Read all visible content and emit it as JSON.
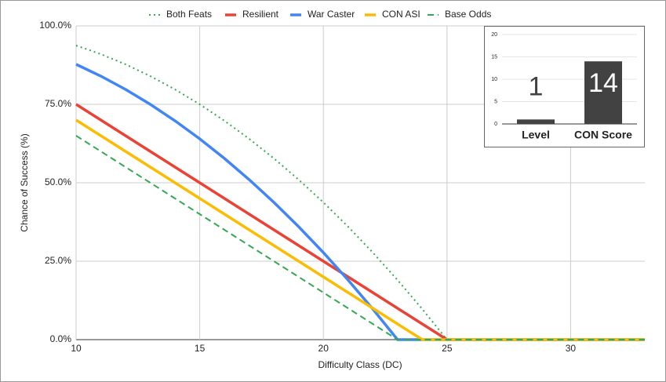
{
  "chart_data": [
    {
      "type": "line",
      "xlabel": "Difficulty Class (DC)",
      "ylabel": "Chance of Success (%)",
      "x": [
        10,
        11,
        12,
        13,
        14,
        15,
        16,
        17,
        18,
        19,
        20,
        21,
        22,
        23,
        24,
        25,
        26,
        27,
        28,
        29,
        30,
        31,
        32,
        33
      ],
      "xlim": [
        10,
        33
      ],
      "xticks": [
        10,
        15,
        20,
        25,
        30
      ],
      "ylim": [
        0,
        100
      ],
      "yticks": [
        {
          "value": 0,
          "label": "0.0%"
        },
        {
          "value": 25,
          "label": "25.0%"
        },
        {
          "value": 50,
          "label": "50.0%"
        },
        {
          "value": 75,
          "label": "75.0%"
        },
        {
          "value": 100,
          "label": "100.0%"
        }
      ],
      "grid": true,
      "legend": "top",
      "series": [
        {
          "name": "Both Feats",
          "color": "#34a853",
          "style": "dotted",
          "values": [
            93.75,
            91,
            87.75,
            84,
            79.75,
            75,
            69.75,
            64,
            57.75,
            51,
            43.75,
            36,
            27.75,
            19,
            9.75,
            0,
            0,
            0,
            0,
            0,
            0,
            0,
            0,
            0
          ]
        },
        {
          "name": "Resilient",
          "color": "#ea4335",
          "style": "solid",
          "values": [
            75,
            70,
            65,
            60,
            55,
            50,
            45,
            40,
            35,
            30,
            25,
            20,
            15,
            10,
            5,
            0,
            0,
            0,
            0,
            0,
            0,
            0,
            0,
            0
          ]
        },
        {
          "name": "War Caster",
          "color": "#4285f4",
          "style": "solid",
          "values": [
            87.75,
            84,
            79.75,
            75,
            69.75,
            64,
            57.75,
            51,
            43.75,
            36,
            27.75,
            19,
            9.75,
            0,
            0,
            0,
            0,
            0,
            0,
            0,
            0,
            0,
            0,
            0
          ]
        },
        {
          "name": "CON ASI",
          "color": "#fbbc04",
          "style": "solid",
          "values": [
            70,
            65,
            60,
            55,
            50,
            45,
            40,
            35,
            30,
            25,
            20,
            15,
            10,
            5,
            0,
            0,
            0,
            0,
            0,
            0,
            0,
            0,
            0,
            0
          ]
        },
        {
          "name": "Base Odds",
          "color": "#34a853",
          "style": "dashed",
          "values": [
            65,
            60,
            55,
            50,
            45,
            40,
            35,
            30,
            25,
            20,
            15,
            10,
            5,
            0,
            0,
            0,
            0,
            0,
            0,
            0,
            0,
            0,
            0,
            0
          ]
        }
      ]
    },
    {
      "type": "bar",
      "categories": [
        "Level",
        "CON Score"
      ],
      "values": [
        1,
        14
      ],
      "color": "#424242",
      "ylim": [
        0,
        20
      ],
      "yticks": [
        0,
        5,
        10,
        15,
        20
      ],
      "grid": true
    }
  ]
}
